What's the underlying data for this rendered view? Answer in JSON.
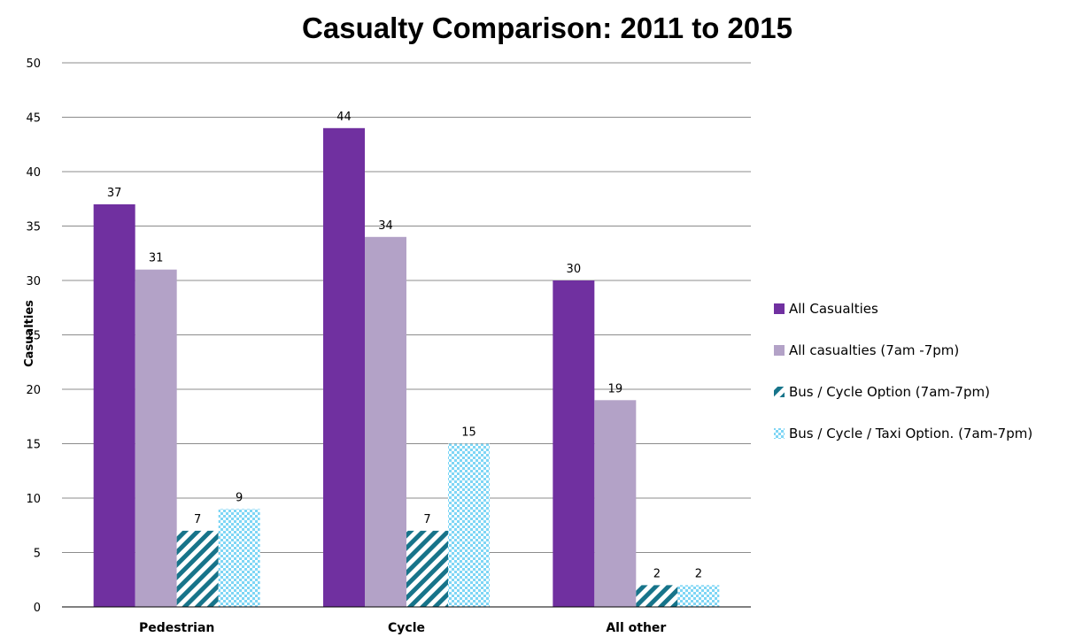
{
  "chart_data": {
    "type": "bar",
    "title": "Casualty Comparison: 2011 to 2015",
    "xlabel": "",
    "ylabel": "Casualties",
    "ylim": [
      0,
      50
    ],
    "yticks": [
      0,
      5,
      10,
      15,
      20,
      25,
      30,
      35,
      40,
      45,
      50
    ],
    "grid": true,
    "legend_position": "right",
    "categories": [
      "Pedestrian",
      "Cycle",
      "All other"
    ],
    "series": [
      {
        "name": "All Casualties",
        "values": [
          37,
          44,
          30
        ],
        "color": "#7030a0",
        "pattern": "solid"
      },
      {
        "name": "All casualties (7am -7pm)",
        "values": [
          31,
          34,
          19
        ],
        "color": "#b3a2c7",
        "pattern": "solid"
      },
      {
        "name": "Bus / Cycle Option (7am-7pm)",
        "values": [
          7,
          7,
          2
        ],
        "color": "#17748a",
        "pattern": "diagonal-stripes"
      },
      {
        "name": "Bus / Cycle / Taxi Option. (7am-7pm)",
        "values": [
          9,
          15,
          2
        ],
        "color": "#7fd6f5",
        "pattern": "checkerboard"
      }
    ]
  }
}
